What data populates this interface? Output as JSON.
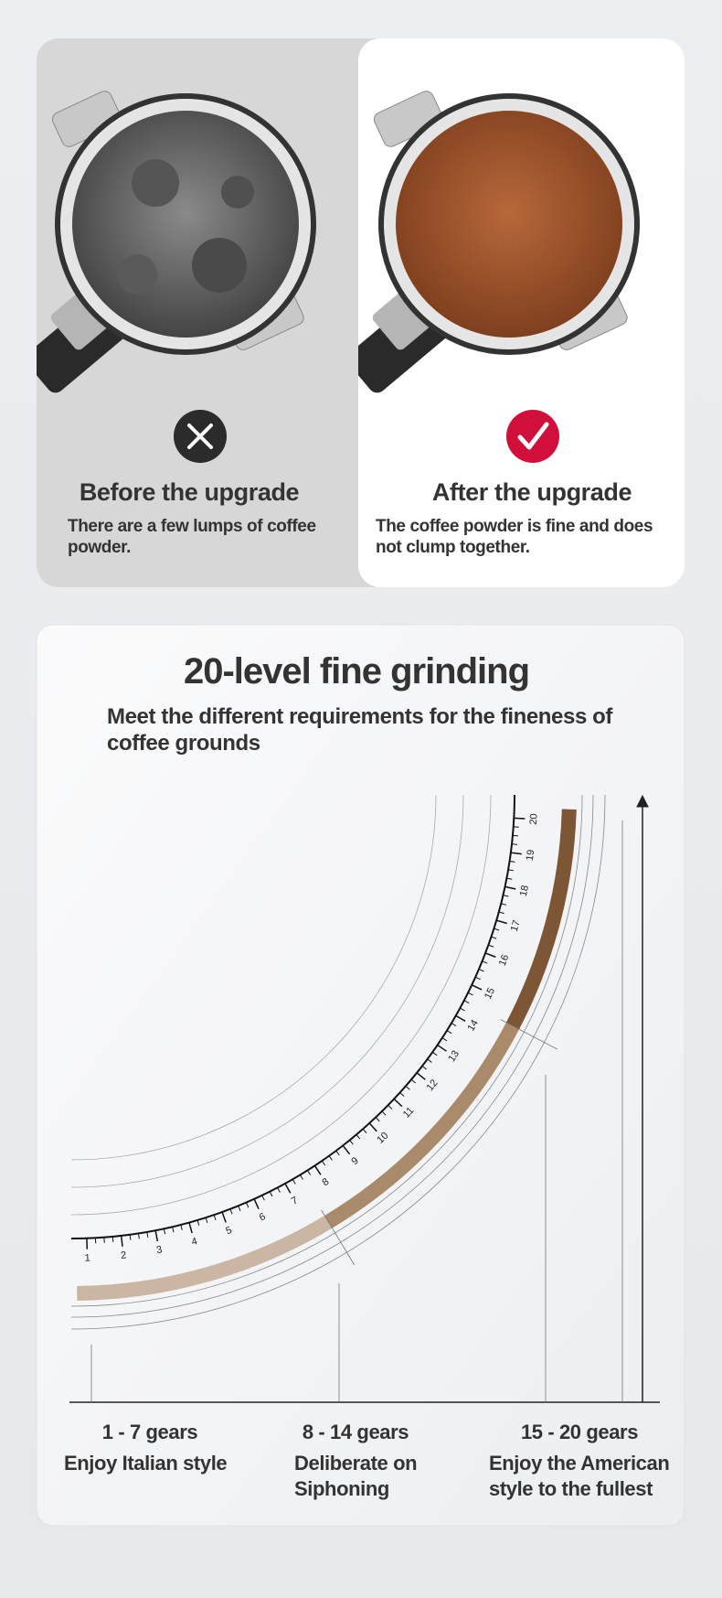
{
  "comparison": {
    "before": {
      "title": "Before the upgrade",
      "description": "There are a few lumps of coffee powder."
    },
    "after": {
      "title": "After the upgrade",
      "description": "The coffee powder is fine and does not clump together."
    }
  },
  "grinding": {
    "title": "20-level fine grinding",
    "subtitle": "Meet the different requirements for the fineness of coffee grounds",
    "dial_labels": [
      "1",
      "2",
      "3",
      "4",
      "5",
      "6",
      "7",
      "8",
      "9",
      "10",
      "11",
      "12",
      "13",
      "14",
      "15",
      "16",
      "17",
      "18",
      "19",
      "20"
    ],
    "ranges": [
      {
        "gears": "1 - 7 gears",
        "description": "Enjoy Italian style"
      },
      {
        "gears": "8 - 14 gears",
        "description": "Deliberate on Siphoning"
      },
      {
        "gears": "15 - 20 gears",
        "description": "Enjoy the American style to the fullest"
      }
    ]
  }
}
